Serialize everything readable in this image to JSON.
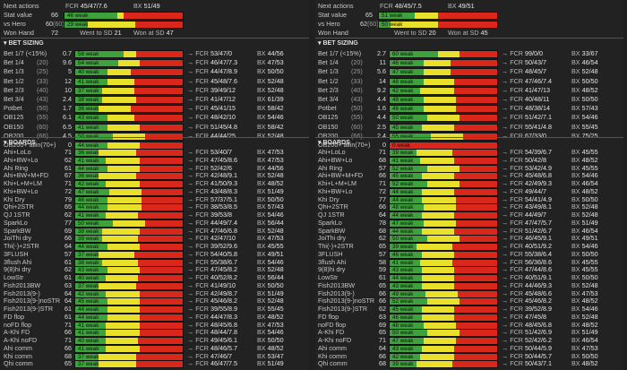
{
  "colors": {
    "green": "#3ea23c",
    "yellow": "#e8e02a",
    "red": "#d9271c",
    "bg": "#222222"
  },
  "section_titles": {
    "bet_sizing": "BET SIZING",
    "boards": "BOARDS"
  },
  "field_labels": {
    "next_actions": "Next actions",
    "stat_value": "Stat value",
    "vs_hero": "vs Hero",
    "won_hand": "Won Hand",
    "fcr": "FCR",
    "bx": "BX",
    "won_sd": "Went to SD",
    "won_at_sd": "Won at SD"
  },
  "panels": [
    {
      "next_actions": {
        "fcr": "45/47/7.6",
        "bx": "51/49"
      },
      "stat_value": {
        "value": "66",
        "bar_text": "46 weak",
        "green": 0.45,
        "yellow": 0.05,
        "red": 0.5
      },
      "vs_hero": {
        "value": "60",
        "count": "(60)",
        "bar_text": "29 weak",
        "green": 0.2,
        "yellow": 0.4,
        "red": 0.4
      },
      "won_hand": {
        "value": "72",
        "wtsd": "21",
        "wsd": "47"
      },
      "bet_sizing": [
        {
          "label": "Bet 1/7 (<15%)",
          "count": "",
          "value": "0.7",
          "bar_text": "58 weak",
          "g": 0.45,
          "y": 0.12,
          "r": 0.43,
          "fcr": "53/47/0",
          "bx": "44/56"
        },
        {
          "label": "Bet 1/4",
          "count": "(20)",
          "value": "9.6",
          "bar_text": "54 weak",
          "g": 0.4,
          "y": 0.2,
          "r": 0.4,
          "fcr": "46/47/7.3",
          "bx": "47/53"
        },
        {
          "label": "Bet 1/3",
          "count": "(25)",
          "value": "5",
          "bar_text": "40 weak",
          "g": 0.3,
          "y": 0.22,
          "r": 0.48,
          "fcr": "44/47/8.9",
          "bx": "50/50"
        },
        {
          "label": "Bet 1/2",
          "count": "(33)",
          "value": "12",
          "bar_text": "41 weak",
          "g": 0.3,
          "y": 0.25,
          "r": 0.45,
          "fcr": "45/48/7.6",
          "bx": "52/48"
        },
        {
          "label": "Bet 2/3",
          "count": "(40)",
          "value": "10",
          "bar_text": "37 weak",
          "g": 0.25,
          "y": 0.3,
          "r": 0.45,
          "fcr": "39/49/12",
          "bx": "52/48"
        },
        {
          "label": "Bet 3/4",
          "count": "(43)",
          "value": "2.4",
          "bar_text": "38 weak",
          "g": 0.25,
          "y": 0.32,
          "r": 0.43,
          "fcr": "41/47/12",
          "bx": "61/39"
        },
        {
          "label": "Potbet",
          "count": "(50)",
          "value": "1.7",
          "bar_text": "36 weak",
          "g": 0.22,
          "y": 0.3,
          "r": 0.48,
          "fcr": "45/41/15",
          "bx": "58/42"
        },
        {
          "label": "OB125",
          "count": "(55)",
          "value": "6.1",
          "bar_text": "43 weak",
          "g": 0.3,
          "y": 0.25,
          "r": 0.45,
          "fcr": "48/42/10",
          "bx": "54/46"
        },
        {
          "label": "OB150",
          "count": "(60)",
          "value": "6.5",
          "bar_text": "41 weak",
          "g": 0.3,
          "y": 0.3,
          "r": 0.4,
          "fcr": "51/45/4.8",
          "bx": "58/42"
        },
        {
          "label": "OB200",
          "count": "(66)",
          "value": "4.5",
          "bar_text": "50 weak",
          "g": 0.35,
          "y": 0.3,
          "r": 0.35,
          "fcr": "44/44/25",
          "bx": "52/48"
        },
        {
          "label": "OB200+ allin(70+)",
          "count": "",
          "value": "0",
          "bar_text": "44 weak",
          "g": 0.3,
          "y": 0.3,
          "r": 0.4,
          "fcr": "",
          "bx": ""
        }
      ],
      "boards": [
        {
          "label": "Ahi+LoLo",
          "value": "71",
          "bar_text": "36 weak",
          "g": 0.22,
          "y": 0.35,
          "r": 0.43,
          "fcr": "53/40/7",
          "bx": "47/53"
        },
        {
          "label": "Ahi+BW+Lo",
          "value": "62",
          "bar_text": "41 weak",
          "g": 0.28,
          "y": 0.32,
          "r": 0.4,
          "fcr": "47/45/8.6",
          "bx": "47/53"
        },
        {
          "label": "Ahi Ring",
          "value": "61",
          "bar_text": "44 weak",
          "g": 0.3,
          "y": 0.3,
          "r": 0.4,
          "fcr": "52/42/6",
          "bx": "44/56"
        },
        {
          "label": "Ahi+BW+M+FD",
          "value": "67",
          "bar_text": "36 weak",
          "g": 0.22,
          "y": 0.35,
          "r": 0.43,
          "fcr": "42/48/9.1",
          "bx": "52/48"
        },
        {
          "label": "Khi+L+M+LM",
          "value": "71",
          "bar_text": "42 weak",
          "g": 0.28,
          "y": 0.32,
          "r": 0.4,
          "fcr": "41/50/9.3",
          "bx": "48/52"
        },
        {
          "label": "Khi+BW+Lo",
          "value": "72",
          "bar_text": "47 weak",
          "g": 0.32,
          "y": 0.3,
          "r": 0.38,
          "fcr": "43/48/8.3",
          "bx": "51/49"
        },
        {
          "label": "Khi Dry",
          "value": "79",
          "bar_text": "46 weak",
          "g": 0.3,
          "y": 0.32,
          "r": 0.38,
          "fcr": "57/37/5.1",
          "bx": "50/50"
        },
        {
          "label": "Qhi+2STR",
          "value": "65",
          "bar_text": "44 weak",
          "g": 0.3,
          "y": 0.32,
          "r": 0.38,
          "fcr": "38/53/8.5",
          "bx": "57/43"
        },
        {
          "label": "QJ 1STR",
          "value": "62",
          "bar_text": "41 weak",
          "g": 0.28,
          "y": 0.3,
          "r": 0.42,
          "fcr": "39/53/8",
          "bx": "54/46"
        },
        {
          "label": "SparkLo",
          "value": "77",
          "bar_text": "50 weak",
          "g": 0.35,
          "y": 0.3,
          "r": 0.35,
          "fcr": "44/49/7.4",
          "bx": "56/44"
        },
        {
          "label": "SparkBW",
          "value": "69",
          "bar_text": "38 weak",
          "g": 0.25,
          "y": 0.35,
          "r": 0.4,
          "fcr": "47/46/6.8",
          "bx": "52/48"
        },
        {
          "label": "JoiThi dry",
          "value": "66",
          "bar_text": "39 weak",
          "g": 0.25,
          "y": 0.33,
          "r": 0.42,
          "fcr": "42/47/10",
          "bx": "47/53"
        },
        {
          "label": "Thi(-)+2STR",
          "value": "64",
          "bar_text": "44 weak",
          "g": 0.3,
          "y": 0.3,
          "r": 0.4,
          "fcr": "39/52/9.6",
          "bx": "45/55"
        },
        {
          "label": "3FLUSH",
          "value": "57",
          "bar_text": "37 weak",
          "g": 0.22,
          "y": 0.33,
          "r": 0.45,
          "fcr": "54/40/5.8",
          "bx": "49/51"
        },
        {
          "label": "3flush Ahi",
          "value": "61",
          "bar_text": "38 weak",
          "g": 0.25,
          "y": 0.33,
          "r": 0.42,
          "fcr": "55/38/6.7",
          "bx": "54/46"
        },
        {
          "label": "9(8)hi dry",
          "value": "62",
          "bar_text": "43 weak",
          "g": 0.3,
          "y": 0.3,
          "r": 0.4,
          "fcr": "47/45/8.2",
          "bx": "52/48"
        },
        {
          "label": "LowStr",
          "value": "61",
          "bar_text": "40 weak",
          "g": 0.28,
          "y": 0.3,
          "r": 0.42,
          "fcr": "40/52/8.2",
          "bx": "56/44"
        },
        {
          "label": "Fish2013BW",
          "value": "63",
          "bar_text": "37 weak",
          "g": 0.22,
          "y": 0.35,
          "r": 0.43,
          "fcr": "41/49/10",
          "bx": "50/50"
        },
        {
          "label": "Fish2013(9-)",
          "value": "64",
          "bar_text": "42 weak",
          "g": 0.28,
          "y": 0.32,
          "r": 0.4,
          "fcr": "42/49/8.7",
          "bx": "51/49"
        },
        {
          "label": "Fish2013(9-)noSTR",
          "value": "64",
          "bar_text": "45 weak",
          "g": 0.3,
          "y": 0.3,
          "r": 0.4,
          "fcr": "45/46/8.2",
          "bx": "52/48"
        },
        {
          "label": "Fish2013(9-)STR",
          "value": "61",
          "bar_text": "44 weak",
          "g": 0.3,
          "y": 0.3,
          "r": 0.4,
          "fcr": "39/55/8.9",
          "bx": "55/45"
        },
        {
          "label": "FD flop",
          "value": "61",
          "bar_text": "44 weak",
          "g": 0.3,
          "y": 0.3,
          "r": 0.4,
          "fcr": "44/47/8.3",
          "bx": "48/52"
        },
        {
          "label": "noFD flop",
          "value": "71",
          "bar_text": "41 weak",
          "g": 0.28,
          "y": 0.32,
          "r": 0.4,
          "fcr": "48/45/6.8",
          "bx": "47/53"
        },
        {
          "label": "A-Khi FD",
          "value": "66",
          "bar_text": "41 weak",
          "g": 0.28,
          "y": 0.32,
          "r": 0.4,
          "fcr": "48/44/7.8",
          "bx": "54/46"
        },
        {
          "label": "A-Khi noFD",
          "value": "71",
          "bar_text": "40 weak",
          "g": 0.28,
          "y": 0.3,
          "r": 0.42,
          "fcr": "49/45/6.1",
          "bx": "50/50"
        },
        {
          "label": "Ahi comm",
          "value": "66",
          "bar_text": "41 weak",
          "g": 0.28,
          "y": 0.32,
          "r": 0.4,
          "fcr": "48/46/5.7",
          "bx": "48/52"
        },
        {
          "label": "Khi comm",
          "value": "68",
          "bar_text": "37 weak",
          "g": 0.22,
          "y": 0.35,
          "r": 0.43,
          "fcr": "47/46/7",
          "bx": "53/47"
        },
        {
          "label": "Qhi comm",
          "value": "65",
          "bar_text": "37 weak",
          "g": 0.22,
          "y": 0.35,
          "r": 0.43,
          "fcr": "46/47/7.5",
          "bx": "51/49"
        }
      ]
    },
    {
      "next_actions": {
        "fcr": "48/45/7.5",
        "bx": "49/51"
      },
      "stat_value": {
        "value": "65",
        "bar_text": "51 weak",
        "green": 0.3,
        "yellow": 0.2,
        "red": 0.5
      },
      "vs_hero": {
        "value": "62",
        "count": "(60)",
        "bar_text": "50 weak",
        "green": 0.1,
        "yellow": 0.4,
        "red": 0.5
      },
      "won_hand": {
        "value": "",
        "wtsd": "20",
        "wsd": "45"
      },
      "bet_sizing": [
        {
          "label": "Bet 1/7 (<15%)",
          "count": "",
          "value": "2.7",
          "bar_text": "60 weak",
          "g": 0.45,
          "y": 0.2,
          "r": 0.35,
          "fcr": "99/0/0",
          "bx": "33/67"
        },
        {
          "label": "Bet 1/4",
          "count": "(20)",
          "value": "11",
          "bar_text": "46 weak",
          "g": 0.32,
          "y": 0.25,
          "r": 0.43,
          "fcr": "50/43/7",
          "bx": "46/54"
        },
        {
          "label": "Bet 1/3",
          "count": "(25)",
          "value": "5.6",
          "bar_text": "47 weak",
          "g": 0.32,
          "y": 0.25,
          "r": 0.43,
          "fcr": "48/45/7",
          "bx": "52/48"
        },
        {
          "label": "Bet 1/2",
          "count": "(33)",
          "value": "14",
          "bar_text": "48 weak",
          "g": 0.32,
          "y": 0.28,
          "r": 0.4,
          "fcr": "47/46/7.4",
          "bx": "50/50"
        },
        {
          "label": "Bet 2/3",
          "count": "(40)",
          "value": "9.2",
          "bar_text": "42 weak",
          "g": 0.28,
          "y": 0.32,
          "r": 0.4,
          "fcr": "41/47/13",
          "bx": "48/52"
        },
        {
          "label": "Bet 3/4",
          "count": "(43)",
          "value": "4.4",
          "bar_text": "48 weak",
          "g": 0.32,
          "y": 0.3,
          "r": 0.38,
          "fcr": "40/48/11",
          "bx": "50/50"
        },
        {
          "label": "Potbet",
          "count": "(50)",
          "value": "1.6",
          "bar_text": "46 weak",
          "g": 0.32,
          "y": 0.3,
          "r": 0.38,
          "fcr": "48/38/14",
          "bx": "57/43"
        },
        {
          "label": "OB125",
          "count": "(55)",
          "value": "4.4",
          "bar_text": "50 weak",
          "g": 0.35,
          "y": 0.3,
          "r": 0.35,
          "fcr": "51/42/7.1",
          "bx": "54/46"
        },
        {
          "label": "OB150",
          "count": "(60)",
          "value": "2.5",
          "bar_text": "45 weak",
          "g": 0.3,
          "y": 0.3,
          "r": 0.4,
          "fcr": "55/41/4.8",
          "bx": "55/45"
        },
        {
          "label": "OB200",
          "count": "(66)",
          "value": "2.4",
          "bar_text": "55 weak",
          "g": 0.38,
          "y": 0.3,
          "r": 0.32,
          "fcr": "67/33/0",
          "bx": "75/25"
        },
        {
          "label": "OB200+ allin(70+)",
          "count": "",
          "value": "0",
          "bar_text": "0 weak",
          "g": 0,
          "y": 0,
          "r": 1,
          "fcr": "",
          "bx": ""
        }
      ],
      "boards": [
        {
          "label": "Ahi+LoLo",
          "value": "71",
          "bar_text": "39 weak",
          "g": 0.25,
          "y": 0.33,
          "r": 0.42,
          "fcr": "54/39/6.7",
          "bx": "45/55"
        },
        {
          "label": "Ahi+BW+Lo",
          "value": "68",
          "bar_text": "41 weak",
          "g": 0.28,
          "y": 0.32,
          "r": 0.4,
          "fcr": "50/42/8",
          "bx": "48/52"
        },
        {
          "label": "Ahi Ring",
          "value": "57",
          "bar_text": "52 weak",
          "g": 0.35,
          "y": 0.3,
          "r": 0.35,
          "fcr": "53/42/4.9",
          "bx": "45/55"
        },
        {
          "label": "Ahi+BW+M+FD",
          "value": "66",
          "bar_text": "45 weak",
          "g": 0.3,
          "y": 0.3,
          "r": 0.4,
          "fcr": "45/48/6.8",
          "bx": "54/46"
        },
        {
          "label": "Khi+L+M+LM",
          "value": "71",
          "bar_text": "52 weak",
          "g": 0.35,
          "y": 0.3,
          "r": 0.35,
          "fcr": "42/49/9.3",
          "bx": "46/54"
        },
        {
          "label": "Khi+BW+Lo",
          "value": "72",
          "bar_text": "44 weak",
          "g": 0.3,
          "y": 0.3,
          "r": 0.4,
          "fcr": "49/44/7",
          "bx": "48/52"
        },
        {
          "label": "Khi Dry",
          "value": "77",
          "bar_text": "44 weak",
          "g": 0.3,
          "y": 0.32,
          "r": 0.38,
          "fcr": "54/41/4.9",
          "bx": "50/50"
        },
        {
          "label": "Qhi+2STR",
          "value": "66",
          "bar_text": "48 weak",
          "g": 0.32,
          "y": 0.3,
          "r": 0.38,
          "fcr": "43/49/8.1",
          "bx": "52/48"
        },
        {
          "label": "QJ 1STR",
          "value": "64",
          "bar_text": "44 weak",
          "g": 0.3,
          "y": 0.3,
          "r": 0.4,
          "fcr": "44/49/7",
          "bx": "52/48"
        },
        {
          "label": "SparkLo",
          "value": "78",
          "bar_text": "47 weak",
          "g": 0.32,
          "y": 0.3,
          "r": 0.38,
          "fcr": "47/47/5.7",
          "bx": "51/49"
        },
        {
          "label": "SparkBW",
          "value": "68",
          "bar_text": "44 weak",
          "g": 0.3,
          "y": 0.3,
          "r": 0.4,
          "fcr": "51/42/6.7",
          "bx": "46/54"
        },
        {
          "label": "JoiThi dry",
          "value": "62",
          "bar_text": "50 weak",
          "g": 0.35,
          "y": 0.3,
          "r": 0.35,
          "fcr": "46/45/9.1",
          "bx": "49/51"
        },
        {
          "label": "Thi(-)+2STR",
          "value": "65",
          "bar_text": "39 weak",
          "g": 0.25,
          "y": 0.33,
          "r": 0.42,
          "fcr": "40/51/9.2",
          "bx": "54/46"
        },
        {
          "label": "3FLUSH",
          "value": "57",
          "bar_text": "46 weak",
          "g": 0.3,
          "y": 0.3,
          "r": 0.4,
          "fcr": "55/38/6.4",
          "bx": "50/50"
        },
        {
          "label": "3flush Ahi",
          "value": "58",
          "bar_text": "41 weak",
          "g": 0.28,
          "y": 0.3,
          "r": 0.42,
          "fcr": "56/36/8.6",
          "bx": "45/55"
        },
        {
          "label": "9(8)hi dry",
          "value": "59",
          "bar_text": "43 weak",
          "g": 0.3,
          "y": 0.3,
          "r": 0.4,
          "fcr": "47/44/8.6",
          "bx": "45/55"
        },
        {
          "label": "LowStr",
          "value": "61",
          "bar_text": "44 weak",
          "g": 0.3,
          "y": 0.3,
          "r": 0.4,
          "fcr": "40/51/9.1",
          "bx": "50/50"
        },
        {
          "label": "Fish2013BW",
          "value": "65",
          "bar_text": "43 weak",
          "g": 0.3,
          "y": 0.3,
          "r": 0.4,
          "fcr": "44/46/9.3",
          "bx": "52/48"
        },
        {
          "label": "Fish2013(9-)",
          "value": "66",
          "bar_text": "49 weak",
          "g": 0.33,
          "y": 0.3,
          "r": 0.37,
          "fcr": "45/48/6.6",
          "bx": "47/53"
        },
        {
          "label": "Fish2013(9-)noSTR",
          "value": "66",
          "bar_text": "52 weak",
          "g": 0.35,
          "y": 0.3,
          "r": 0.35,
          "fcr": "45/46/8.2",
          "bx": "48/52"
        },
        {
          "label": "Fish2013(9-)STR",
          "value": "62",
          "bar_text": "45 weak",
          "g": 0.3,
          "y": 0.3,
          "r": 0.4,
          "fcr": "39/52/8.9",
          "bx": "54/46"
        },
        {
          "label": "FD flop",
          "value": "63",
          "bar_text": "46 weak",
          "g": 0.3,
          "y": 0.3,
          "r": 0.4,
          "fcr": "47/45/8",
          "bx": "52/48"
        },
        {
          "label": "noFD flop",
          "value": "69",
          "bar_text": "48 weak",
          "g": 0.32,
          "y": 0.3,
          "r": 0.38,
          "fcr": "48/45/6.8",
          "bx": "48/52"
        },
        {
          "label": "A-Khi FD",
          "value": "65",
          "bar_text": "50 weak",
          "g": 0.35,
          "y": 0.3,
          "r": 0.35,
          "fcr": "51/42/6.9",
          "bx": "51/49"
        },
        {
          "label": "A-Khi noFD",
          "value": "71",
          "bar_text": "47 weak",
          "g": 0.32,
          "y": 0.3,
          "r": 0.38,
          "fcr": "52/42/6.2",
          "bx": "46/54"
        },
        {
          "label": "Ahi comm",
          "value": "64",
          "bar_text": "43 weak",
          "g": 0.3,
          "y": 0.3,
          "r": 0.4,
          "fcr": "50/44/5.9",
          "bx": "47/53"
        },
        {
          "label": "Khi comm",
          "value": "66",
          "bar_text": "42 weak",
          "g": 0.28,
          "y": 0.32,
          "r": 0.4,
          "fcr": "50/44/5.7",
          "bx": "50/50"
        },
        {
          "label": "Qhi comm",
          "value": "68",
          "bar_text": "39 weak",
          "g": 0.25,
          "y": 0.33,
          "r": 0.42,
          "fcr": "50/43/7.1",
          "bx": "48/52"
        }
      ]
    }
  ]
}
